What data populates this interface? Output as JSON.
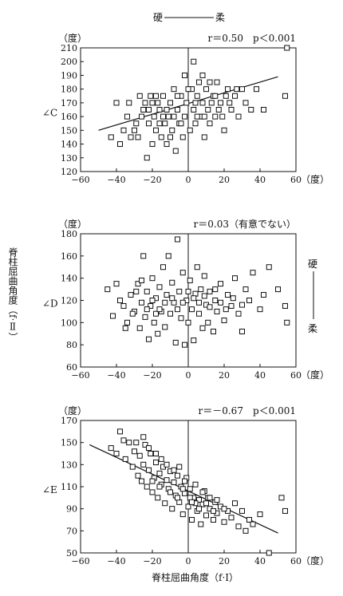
{
  "top_scale": {
    "hard": "硬",
    "soft": "柔"
  },
  "right_scale": {
    "hard": "硬",
    "soft": "柔"
  },
  "y_axis_side_label": "脊柱屈曲角度（f·Ⅱ）",
  "x_axis_label": "脊柱屈曲角度（f·I）",
  "chart_data": [
    {
      "type": "scatter",
      "panel": "C",
      "ylabel": "∠C",
      "unit_y": "（度）",
      "unit_x": "（度）",
      "annotation": "r＝0.50　p＜0.001",
      "xlim": [
        -60,
        60
      ],
      "ylim": [
        120,
        210
      ],
      "xticks": [
        -60,
        -40,
        -20,
        0,
        20,
        40,
        60
      ],
      "yticks": [
        120,
        130,
        140,
        150,
        160,
        170,
        180,
        190,
        200,
        210
      ],
      "grid": false,
      "regression": {
        "x": [
          -50,
          50
        ],
        "y": [
          150,
          189
        ]
      },
      "points": [
        [
          -43,
          145
        ],
        [
          -40,
          170
        ],
        [
          -38,
          140
        ],
        [
          -33,
          170
        ],
        [
          -30,
          150
        ],
        [
          -28,
          145
        ],
        [
          -26,
          160
        ],
        [
          -25,
          165
        ],
        [
          -24,
          170
        ],
        [
          -23,
          130
        ],
        [
          -22,
          155
        ],
        [
          -21,
          175
        ],
        [
          -20,
          140
        ],
        [
          -19,
          160
        ],
        [
          -18,
          150
        ],
        [
          -17,
          170
        ],
        [
          -16,
          165
        ],
        [
          -15,
          145
        ],
        [
          -14,
          175
        ],
        [
          -13,
          155
        ],
        [
          -12,
          140
        ],
        [
          -11,
          160
        ],
        [
          -10,
          170
        ],
        [
          -9,
          150
        ],
        [
          -8,
          180
        ],
        [
          -7,
          135
        ],
        [
          -6,
          165
        ],
        [
          -5,
          155
        ],
        [
          -4,
          175
        ],
        [
          -3,
          145
        ],
        [
          -2,
          160
        ],
        [
          -1,
          170
        ],
        [
          1,
          150
        ],
        [
          2,
          180
        ],
        [
          3,
          165
        ],
        [
          4,
          155
        ],
        [
          5,
          175
        ],
        [
          6,
          185
        ],
        [
          7,
          160
        ],
        [
          8,
          170
        ],
        [
          9,
          145
        ],
        [
          10,
          180
        ],
        [
          11,
          165
        ],
        [
          12,
          155
        ],
        [
          14,
          175
        ],
        [
          15,
          160
        ],
        [
          16,
          185
        ],
        [
          18,
          170
        ],
        [
          20,
          150
        ],
        [
          22,
          180
        ],
        [
          24,
          165
        ],
        [
          26,
          175
        ],
        [
          28,
          160
        ],
        [
          30,
          180
        ],
        [
          32,
          170
        ],
        [
          35,
          165
        ],
        [
          38,
          180
        ],
        [
          42,
          165
        ],
        [
          54,
          175
        ],
        [
          55,
          210
        ],
        [
          -36,
          150
        ],
        [
          -34,
          160
        ],
        [
          -32,
          145
        ],
        [
          -29,
          155
        ],
        [
          -27,
          175
        ],
        [
          -22,
          165
        ],
        [
          -18,
          175
        ],
        [
          -14,
          160
        ],
        [
          -10,
          145
        ],
        [
          -6,
          175
        ],
        [
          -2,
          190
        ],
        [
          0,
          180
        ],
        [
          3,
          200
        ],
        [
          5,
          160
        ],
        [
          8,
          190
        ],
        [
          12,
          185
        ],
        [
          15,
          175
        ],
        [
          19,
          160
        ],
        [
          23,
          170
        ],
        [
          27,
          180
        ],
        [
          -20,
          170
        ],
        [
          -16,
          155
        ],
        [
          -12,
          165
        ],
        [
          -8,
          160
        ],
        [
          -4,
          155
        ],
        [
          4,
          170
        ],
        [
          9,
          160
        ],
        [
          13,
          170
        ],
        [
          17,
          165
        ],
        [
          21,
          175
        ]
      ]
    },
    {
      "type": "scatter",
      "panel": "D",
      "ylabel": "∠D",
      "unit_y": "（度）",
      "unit_x": "（度）",
      "annotation": "r＝0.03（有意でない）",
      "xlim": [
        -60,
        60
      ],
      "ylim": [
        60,
        180
      ],
      "xticks": [
        -60,
        -40,
        -20,
        0,
        20,
        40,
        60
      ],
      "yticks": [
        60,
        80,
        100,
        120,
        140,
        160,
        180
      ],
      "grid": false,
      "points": [
        [
          -45,
          130
        ],
        [
          -42,
          106
        ],
        [
          -38,
          120
        ],
        [
          -36,
          115
        ],
        [
          -34,
          100
        ],
        [
          -32,
          125
        ],
        [
          -30,
          110
        ],
        [
          -28,
          135
        ],
        [
          -27,
          95
        ],
        [
          -26,
          118
        ],
        [
          -25,
          160
        ],
        [
          -24,
          105
        ],
        [
          -23,
          128
        ],
        [
          -22,
          85
        ],
        [
          -21,
          115
        ],
        [
          -20,
          140
        ],
        [
          -19,
          100
        ],
        [
          -18,
          122
        ],
        [
          -17,
          90
        ],
        [
          -16,
          132
        ],
        [
          -15,
          110
        ],
        [
          -14,
          150
        ],
        [
          -13,
          96
        ],
        [
          -12,
          125
        ],
        [
          -11,
          160
        ],
        [
          -10,
          108
        ],
        [
          -9,
          136
        ],
        [
          -8,
          118
        ],
        [
          -7,
          82
        ],
        [
          -6,
          175
        ],
        [
          -5,
          128
        ],
        [
          -4,
          104
        ],
        [
          -3,
          145
        ],
        [
          -2,
          80
        ],
        [
          -1,
          120
        ],
        [
          0,
          100
        ],
        [
          1,
          138
        ],
        [
          2,
          112
        ],
        [
          3,
          84
        ],
        [
          4,
          126
        ],
        [
          5,
          150
        ],
        [
          6,
          108
        ],
        [
          7,
          130
        ],
        [
          8,
          95
        ],
        [
          9,
          142
        ],
        [
          10,
          116
        ],
        [
          11,
          100
        ],
        [
          12,
          128
        ],
        [
          14,
          92
        ],
        [
          15,
          120
        ],
        [
          16,
          110
        ],
        [
          18,
          135
        ],
        [
          20,
          102
        ],
        [
          22,
          125
        ],
        [
          24,
          115
        ],
        [
          26,
          140
        ],
        [
          28,
          108
        ],
        [
          30,
          92
        ],
        [
          32,
          130
        ],
        [
          34,
          120
        ],
        [
          36,
          145
        ],
        [
          40,
          112
        ],
        [
          42,
          125
        ],
        [
          45,
          150
        ],
        [
          50,
          130
        ],
        [
          54,
          115
        ],
        [
          55,
          100
        ],
        [
          -40,
          135
        ],
        [
          -35,
          95
        ],
        [
          -31,
          108
        ],
        [
          -29,
          128
        ],
        [
          -26,
          138
        ],
        [
          -23,
          112
        ],
        [
          -20,
          120
        ],
        [
          -18,
          108
        ],
        [
          -16,
          112
        ],
        [
          -13,
          118
        ],
        [
          -9,
          122
        ],
        [
          -6,
          112
        ],
        [
          -3,
          118
        ],
        [
          0,
          128
        ],
        [
          3,
          122
        ],
        [
          6,
          118
        ],
        [
          9,
          124
        ],
        [
          12,
          114
        ],
        [
          15,
          130
        ],
        [
          18,
          118
        ],
        [
          21,
          112
        ],
        [
          25,
          122
        ],
        [
          30,
          116
        ]
      ]
    },
    {
      "type": "scatter",
      "panel": "E",
      "ylabel": "∠E",
      "unit_y": "（度）",
      "unit_x": "（度）",
      "annotation": "r＝－0.67　p＜0.001",
      "xlim": [
        -60,
        60
      ],
      "ylim": [
        50,
        170
      ],
      "xticks": [
        -60,
        -40,
        -20,
        0,
        20,
        40,
        60
      ],
      "yticks": [
        50,
        70,
        90,
        110,
        130,
        150,
        170
      ],
      "grid": false,
      "regression": {
        "x": [
          -55,
          50
        ],
        "y": [
          148,
          68
        ]
      },
      "points": [
        [
          -43,
          145
        ],
        [
          -40,
          140
        ],
        [
          -38,
          160
        ],
        [
          -35,
          135
        ],
        [
          -33,
          150
        ],
        [
          -31,
          128
        ],
        [
          -30,
          142
        ],
        [
          -28,
          120
        ],
        [
          -27,
          138
        ],
        [
          -26,
          115
        ],
        [
          -25,
          130
        ],
        [
          -24,
          148
        ],
        [
          -23,
          110
        ],
        [
          -22,
          125
        ],
        [
          -21,
          140
        ],
        [
          -20,
          105
        ],
        [
          -19,
          118
        ],
        [
          -18,
          132
        ],
        [
          -17,
          100
        ],
        [
          -16,
          122
        ],
        [
          -15,
          112
        ],
        [
          -14,
          128
        ],
        [
          -13,
          95
        ],
        [
          -12,
          116
        ],
        [
          -11,
          108
        ],
        [
          -10,
          124
        ],
        [
          -9,
          90
        ],
        [
          -8,
          114
        ],
        [
          -7,
          102
        ],
        [
          -6,
          120
        ],
        [
          -5,
          96
        ],
        [
          -4,
          110
        ],
        [
          -3,
          85
        ],
        [
          -2,
          104
        ],
        [
          -1,
          118
        ],
        [
          0,
          92
        ],
        [
          1,
          108
        ],
        [
          2,
          80
        ],
        [
          3,
          100
        ],
        [
          4,
          112
        ],
        [
          5,
          88
        ],
        [
          6,
          98
        ],
        [
          7,
          76
        ],
        [
          8,
          94
        ],
        [
          9,
          106
        ],
        [
          10,
          84
        ],
        [
          11,
          100
        ],
        [
          12,
          90
        ],
        [
          14,
          80
        ],
        [
          15,
          96
        ],
        [
          16,
          86
        ],
        [
          18,
          92
        ],
        [
          20,
          78
        ],
        [
          22,
          88
        ],
        [
          24,
          82
        ],
        [
          26,
          95
        ],
        [
          28,
          74
        ],
        [
          30,
          88
        ],
        [
          32,
          70
        ],
        [
          34,
          80
        ],
        [
          36,
          76
        ],
        [
          40,
          85
        ],
        [
          45,
          50
        ],
        [
          52,
          100
        ],
        [
          54,
          88
        ],
        [
          -36,
          152
        ],
        [
          -29,
          150
        ],
        [
          -25,
          155
        ],
        [
          -22,
          145
        ],
        [
          -18,
          140
        ],
        [
          -15,
          135
        ],
        [
          -12,
          130
        ],
        [
          -8,
          125
        ],
        [
          -5,
          128
        ],
        [
          -2,
          115
        ],
        [
          1,
          100
        ],
        [
          4,
          95
        ],
        [
          8,
          105
        ],
        [
          12,
          100
        ],
        [
          16,
          98
        ],
        [
          -20,
          115
        ],
        [
          -16,
          110
        ],
        [
          -10,
          105
        ],
        [
          -6,
          100
        ],
        [
          -3,
          108
        ],
        [
          2,
          96
        ],
        [
          6,
          90
        ],
        [
          10,
          95
        ],
        [
          14,
          88
        ],
        [
          20,
          90
        ]
      ]
    }
  ]
}
